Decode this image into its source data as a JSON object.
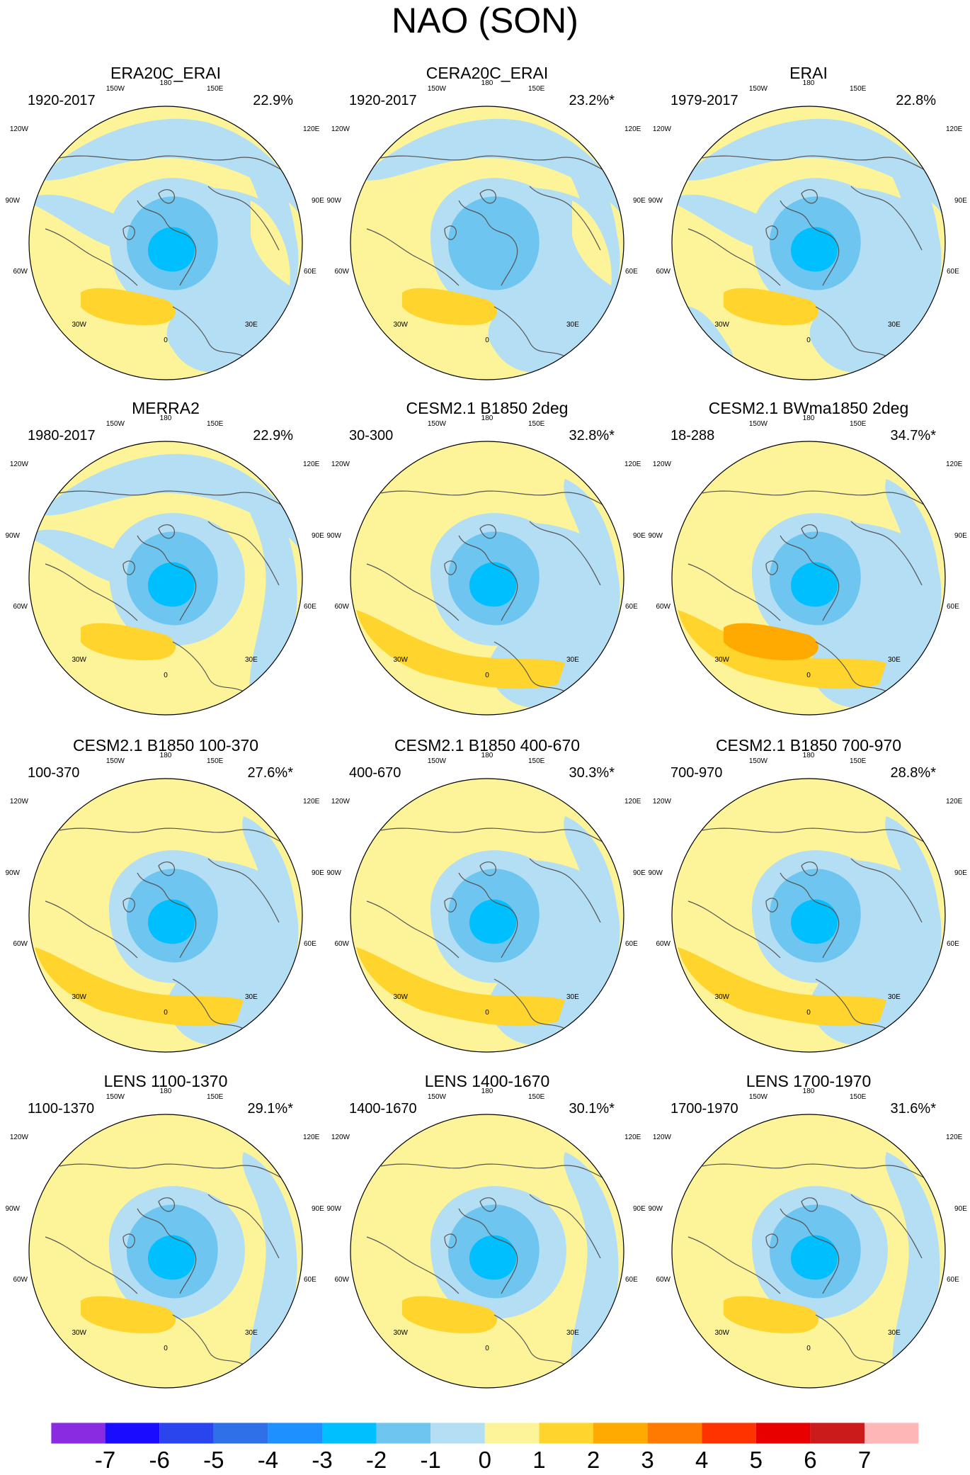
{
  "title": "NAO (SON)",
  "lon_labels": [
    "180",
    "150W",
    "150E",
    "120W",
    "120E",
    "90W",
    "90E",
    "60W",
    "60E",
    "30W",
    "30E",
    "0"
  ],
  "panels": [
    {
      "title": "ERA20C_ERAI",
      "period": "1920-2017",
      "variance": "22.9%",
      "style": "obs_a"
    },
    {
      "title": "CERA20C_ERAI",
      "period": "1920-2017",
      "variance": "23.2%*",
      "style": "obs_b"
    },
    {
      "title": "ERAI",
      "period": "1979-2017",
      "variance": "22.8%",
      "style": "obs_c"
    },
    {
      "title": "MERRA2",
      "period": "1980-2017",
      "variance": "22.9%",
      "style": "obs_d"
    },
    {
      "title": "CESM2.1 B1850 2deg",
      "period": "30-300",
      "variance": "32.8%*",
      "style": "model_strong"
    },
    {
      "title": "CESM2.1 BWma1850 2deg",
      "period": "18-288",
      "variance": "34.7%*",
      "style": "model_strongest"
    },
    {
      "title": "CESM2.1 B1850 100-370",
      "period": "100-370",
      "variance": "27.6%*",
      "style": "model"
    },
    {
      "title": "CESM2.1 B1850 400-670",
      "period": "400-670",
      "variance": "30.3%*",
      "style": "model"
    },
    {
      "title": "CESM2.1 B1850 700-970",
      "period": "700-970",
      "variance": "28.8%*",
      "style": "model"
    },
    {
      "title": "LENS 1100-1370",
      "period": "1100-1370",
      "variance": "29.1%*",
      "style": "lens"
    },
    {
      "title": "LENS 1400-1670",
      "period": "1400-1670",
      "variance": "30.1%*",
      "style": "lens"
    },
    {
      "title": "LENS 1700-1970",
      "period": "1700-1970",
      "variance": "31.6%*",
      "style": "lens"
    }
  ],
  "colorbar": {
    "labels": [
      "-7",
      "-6",
      "-5",
      "-4",
      "-3",
      "-2",
      "-1",
      "0",
      "1",
      "2",
      "3",
      "4",
      "5",
      "6",
      "7"
    ],
    "colors": [
      "#8a2be2",
      "#1a0dff",
      "#2a44ee",
      "#2f6fe8",
      "#1e90ff",
      "#00bfff",
      "#6ec5f0",
      "#b3def3",
      "#fdf49a",
      "#fed42d",
      "#ffaa00",
      "#ff7b00",
      "#ff3300",
      "#e80000",
      "#cc1b1b",
      "#ffb6b6"
    ]
  },
  "colors": {
    "blue1": "#b3def3",
    "blue2": "#6ec5f0",
    "blue3": "#00bfff",
    "yellow1": "#fdf49a",
    "yellow2": "#fed42d",
    "orange": "#ffaa00",
    "coast": "#555555"
  }
}
